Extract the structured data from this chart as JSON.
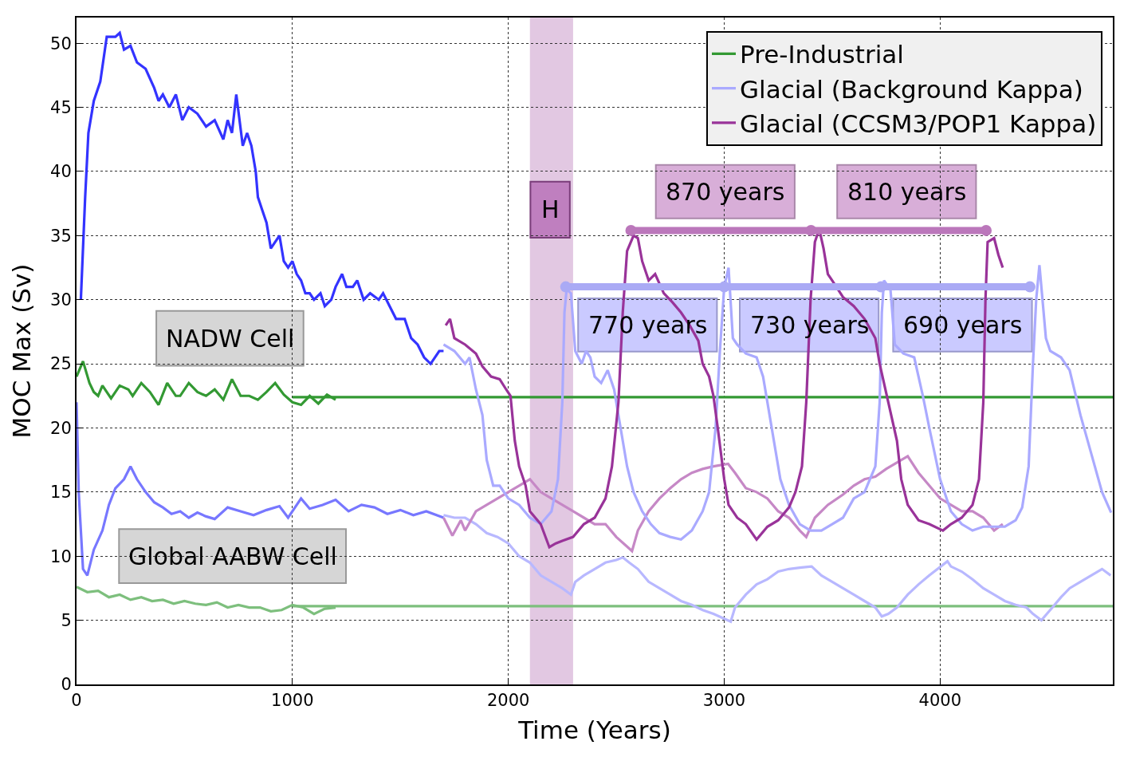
{
  "chart_data": {
    "type": "line",
    "xlabel": "Time (Years)",
    "ylabel": "MOC Max (Sv)",
    "xlim": [
      0,
      4800
    ],
    "ylim": [
      0,
      52
    ],
    "xticks": [
      0,
      1000,
      2000,
      3000,
      4000
    ],
    "yticks": [
      0,
      5,
      10,
      15,
      20,
      25,
      30,
      35,
      40,
      45,
      50
    ],
    "grid": true,
    "legend": "top right",
    "line_style": "solid",
    "bands": [
      {
        "axis": "x",
        "from": 2100,
        "to": 2300,
        "color": "#e2c8e2"
      }
    ],
    "annotations": [
      "NADW Cell",
      "Global AABW Cell",
      "H",
      "870 years",
      "810 years",
      "770 years",
      "730 years",
      "690 years"
    ],
    "series": [
      {
        "color": "#3333ff",
        "x": [
          20,
          40,
          55,
          80,
          110,
          140,
          180,
          200,
          220,
          250,
          280,
          320,
          360,
          380,
          400,
          430,
          460,
          490,
          520,
          560,
          600,
          640,
          680,
          700,
          720,
          740,
          770,
          790,
          810,
          830,
          840,
          860,
          880,
          900,
          920,
          940,
          960,
          980,
          1000,
          1020,
          1040,
          1060,
          1080,
          1100,
          1130,
          1150,
          1180,
          1200,
          1230,
          1250,
          1280,
          1300,
          1330,
          1360,
          1400,
          1420,
          1450,
          1480,
          1520,
          1550,
          1580,
          1610,
          1640,
          1680,
          1700
        ],
        "values": [
          30,
          38,
          43,
          45.5,
          47,
          50.5,
          50.5,
          50.8,
          49.5,
          49.8,
          48.5,
          48,
          46.5,
          45.5,
          46,
          45,
          46,
          44,
          45,
          44.5,
          43.5,
          44,
          42.5,
          44,
          43,
          46,
          42,
          43,
          42,
          40,
          38,
          37,
          36,
          34,
          34.5,
          35,
          33,
          32.5,
          33,
          32,
          31.5,
          30.5,
          30.5,
          30,
          30.5,
          29.5,
          30,
          31,
          32,
          31,
          31,
          31.5,
          30,
          30.5,
          30,
          30.5,
          29.5,
          28.5,
          28.5,
          27,
          26.5,
          25.5,
          25,
          26,
          26
        ]
      },
      {
        "color": "#7777ff",
        "x": [
          0,
          10,
          30,
          50,
          80,
          120,
          150,
          180,
          220,
          250,
          280,
          320,
          360,
          400,
          440,
          480,
          520,
          560,
          600,
          640,
          700,
          760,
          820,
          880,
          940,
          980,
          1000,
          1040,
          1080,
          1140,
          1200,
          1260,
          1320,
          1380,
          1440,
          1500,
          1560,
          1620,
          1700
        ],
        "values": [
          22,
          15,
          9,
          8.5,
          10.5,
          12,
          14,
          15.3,
          16,
          17,
          16,
          15,
          14.2,
          13.8,
          13.3,
          13.5,
          13,
          13.4,
          13.1,
          12.9,
          13.8,
          13.5,
          13.2,
          13.6,
          13.9,
          13,
          13.5,
          14.5,
          13.7,
          14,
          14.4,
          13.5,
          14,
          13.8,
          13.3,
          13.6,
          13.2,
          13.5,
          13
        ]
      },
      {
        "name": "Pre-Industrial",
        "color": "#339933",
        "x": [
          0,
          30,
          60,
          80,
          100,
          120,
          160,
          200,
          240,
          260,
          300,
          340,
          380,
          420,
          460,
          480,
          520,
          560,
          600,
          640,
          680,
          720,
          760,
          800,
          840,
          880,
          920,
          960,
          1000,
          1040,
          1080,
          1120,
          1160,
          1200
        ],
        "values": [
          24,
          25.2,
          23.5,
          22.8,
          22.5,
          23.3,
          22.3,
          23.3,
          23,
          22.5,
          23.5,
          22.8,
          21.8,
          23.5,
          22.5,
          22.5,
          23.5,
          22.8,
          22.5,
          23,
          22.2,
          23.8,
          22.5,
          22.5,
          22.2,
          22.8,
          23.5,
          22.6,
          22,
          21.8,
          22.5,
          21.9,
          22.6,
          22.2
        ]
      },
      {
        "color": "#339933",
        "x": [
          1000,
          4800
        ],
        "values": [
          22.4,
          22.4
        ]
      },
      {
        "color": "#7dbf7d",
        "x": [
          0,
          50,
          100,
          150,
          200,
          250,
          300,
          350,
          400,
          450,
          500,
          550,
          600,
          650,
          700,
          750,
          800,
          850,
          900,
          950,
          1000,
          1050,
          1100,
          1150,
          1200
        ],
        "values": [
          7.6,
          7.2,
          7.3,
          6.8,
          7,
          6.6,
          6.8,
          6.5,
          6.6,
          6.3,
          6.5,
          6.3,
          6.2,
          6.4,
          6,
          6.2,
          6,
          6,
          5.7,
          5.8,
          6.2,
          6,
          5.5,
          5.9,
          6
        ]
      },
      {
        "color": "#7dbf7d",
        "x": [
          1000,
          4800
        ],
        "values": [
          6.1,
          6.1
        ]
      },
      {
        "color": "#b8b8ff",
        "x": [
          1700,
          1750,
          1800,
          1850,
          1900,
          1950,
          2000,
          2050,
          2100,
          2150,
          2200,
          2250,
          2290,
          2310,
          2350,
          2400,
          2450,
          2500,
          2530,
          2560,
          2600,
          2650,
          2700,
          2750,
          2800,
          2850,
          2900,
          2950,
          3030,
          3050,
          3100,
          3150,
          3200,
          3250,
          3300,
          3350,
          3405,
          3450,
          3500,
          3550,
          3600,
          3650,
          3700,
          3730,
          3760,
          3800,
          3850,
          3900,
          3950,
          4034,
          4050,
          4100,
          4150,
          4200,
          4250,
          4300,
          4350,
          4400,
          4430,
          4469,
          4520,
          4560,
          4600,
          4650,
          4700,
          4750,
          4790
        ],
        "values": [
          13.2,
          13,
          13,
          12.5,
          11.8,
          11.5,
          11,
          10,
          9.5,
          8.5,
          8,
          7.5,
          7,
          8,
          8.5,
          9,
          9.5,
          9.7,
          9.9,
          9.5,
          9,
          8,
          7.5,
          7,
          6.5,
          6.2,
          5.8,
          5.5,
          4.9,
          6,
          7,
          7.8,
          8.2,
          8.8,
          9,
          9.1,
          9.2,
          8.5,
          8,
          7.5,
          7,
          6.5,
          6,
          5.3,
          5.5,
          6,
          7,
          7.8,
          8.5,
          9.6,
          9.2,
          8.8,
          8.2,
          7.5,
          7,
          6.5,
          6.2,
          6,
          5.5,
          5,
          6,
          6.8,
          7.5,
          8,
          8.5,
          9,
          8.5
        ]
      },
      {
        "color": "#c688c6",
        "x": [
          1700,
          1741,
          1780,
          1800,
          1850,
          1900,
          1950,
          2000,
          2050,
          2100,
          2150,
          2200,
          2250,
          2300,
          2350,
          2400,
          2450,
          2500,
          2573,
          2600,
          2650,
          2700,
          2750,
          2800,
          2850,
          2900,
          2950,
          3018,
          3050,
          3100,
          3150,
          3200,
          3250,
          3300,
          3350,
          3380,
          3420,
          3480,
          3550,
          3600,
          3650,
          3700,
          3750,
          3800,
          3850,
          3900,
          3950,
          4000,
          4050,
          4100,
          4150,
          4200,
          4250,
          4290
        ],
        "values": [
          13,
          11.6,
          12.8,
          12,
          13.5,
          14,
          14.5,
          15,
          15.5,
          16,
          15,
          14.5,
          14,
          13.5,
          13,
          12.5,
          12.5,
          11.5,
          10.4,
          12,
          13.5,
          14.5,
          15.3,
          16,
          16.5,
          16.8,
          17,
          17.2,
          16.5,
          15.3,
          15,
          14.5,
          13.5,
          13,
          12,
          11.5,
          13,
          14,
          14.8,
          15.5,
          16,
          16.2,
          16.8,
          17.3,
          17.8,
          16.5,
          15.5,
          14.5,
          14,
          13.5,
          13.5,
          13,
          12,
          12.5
        ]
      },
      {
        "name": "Glacial (Background Kappa)",
        "color": "#aaaaff",
        "x": [
          1700,
          1750,
          1800,
          1820,
          1850,
          1880,
          1900,
          1930,
          1960,
          2000,
          2050,
          2100,
          2150,
          2200,
          2230,
          2250,
          2260,
          2270,
          2290,
          2310,
          2340,
          2360,
          2380,
          2400,
          2430,
          2460,
          2490,
          2520,
          2550,
          2580,
          2620,
          2660,
          2700,
          2750,
          2800,
          2850,
          2900,
          2930,
          2960,
          2980,
          3000,
          3020,
          3040,
          3060,
          3100,
          3150,
          3180,
          3220,
          3260,
          3300,
          3350,
          3400,
          3450,
          3500,
          3550,
          3600,
          3650,
          3700,
          3720,
          3730,
          3740,
          3770,
          3790,
          3830,
          3880,
          3920,
          3950,
          4000,
          4050,
          4100,
          4150,
          4200,
          4300,
          4350,
          4380,
          4410,
          4430,
          4445,
          4460,
          4490,
          4510,
          4560,
          4600,
          4650,
          4700,
          4750,
          4792
        ],
        "values": [
          26.5,
          26,
          25,
          25.5,
          23,
          21,
          17.5,
          15.5,
          15.5,
          14.5,
          14,
          13,
          12.5,
          13.5,
          16,
          22,
          29,
          30.8,
          30.5,
          26,
          25,
          26,
          25.5,
          24,
          23.5,
          24.5,
          23,
          20,
          17,
          15,
          13.5,
          12.5,
          11.8,
          11.5,
          11.3,
          12,
          13.5,
          15,
          20,
          26,
          31,
          32.5,
          27,
          26.5,
          25.8,
          25.5,
          24,
          20,
          16,
          14,
          12.5,
          12,
          12,
          12.5,
          13,
          14.5,
          15,
          17,
          22,
          29,
          31.5,
          30.8,
          26.5,
          25.8,
          25.5,
          22.5,
          20,
          16,
          13.5,
          12.5,
          12,
          12.3,
          12.3,
          12.8,
          13.8,
          17,
          25,
          30,
          32.7,
          27,
          26,
          25.5,
          24.5,
          21,
          18,
          15,
          13.4
        ]
      },
      {
        "name": "Glacial (CCSM3/POP1 Kappa)",
        "color": "#993399",
        "x": [
          1710,
          1730,
          1750,
          1800,
          1850,
          1880,
          1920,
          1960,
          1990,
          2010,
          2030,
          2050,
          2080,
          2100,
          2150,
          2190,
          2220,
          2250,
          2300,
          2350,
          2400,
          2450,
          2480,
          2510,
          2530,
          2550,
          2580,
          2600,
          2620,
          2650,
          2680,
          2720,
          2760,
          2800,
          2840,
          2880,
          2900,
          2930,
          2950,
          2970,
          3000,
          3020,
          3060,
          3100,
          3150,
          3200,
          3250,
          3300,
          3330,
          3360,
          3380,
          3400,
          3420,
          3440,
          3460,
          3480,
          3500,
          3550,
          3600,
          3650,
          3700,
          3720,
          3760,
          3800,
          3820,
          3850,
          3900,
          3950,
          4013,
          4050,
          4100,
          4150,
          4180,
          4200,
          4210,
          4220,
          4250,
          4270,
          4290
        ],
        "values": [
          28,
          28.5,
          27,
          26.5,
          25.8,
          24.8,
          24,
          23.8,
          23,
          22.5,
          19,
          17,
          15.5,
          13.5,
          12.5,
          10.7,
          11,
          11.2,
          11.5,
          12.5,
          13,
          14.5,
          17,
          22,
          29,
          33.8,
          35,
          34.8,
          33,
          31.5,
          32,
          30.5,
          29.8,
          29,
          28,
          26.8,
          25,
          24,
          22.5,
          20,
          16,
          14,
          13,
          12.5,
          11.3,
          12.3,
          12.8,
          13.8,
          15,
          17,
          22,
          30,
          34.5,
          35.5,
          34,
          32,
          31.5,
          30.2,
          29.5,
          28.5,
          27,
          25,
          22,
          19,
          16,
          14,
          12.8,
          12.5,
          12,
          12.5,
          13,
          14,
          16,
          22,
          30,
          34.5,
          34.8,
          33.5,
          32.5
        ]
      },
      {
        "color": "#bb77bb",
        "marker": "circle",
        "x": [
          2568,
          3402,
          4213
        ],
        "values": [
          35.4,
          35.4,
          35.4
        ]
      },
      {
        "color": "#aaaaf5",
        "marker": "circle",
        "x": [
          2266,
          3000,
          3726,
          4416
        ],
        "values": [
          31.0,
          31.0,
          31.0,
          31.0
        ]
      }
    ]
  }
}
